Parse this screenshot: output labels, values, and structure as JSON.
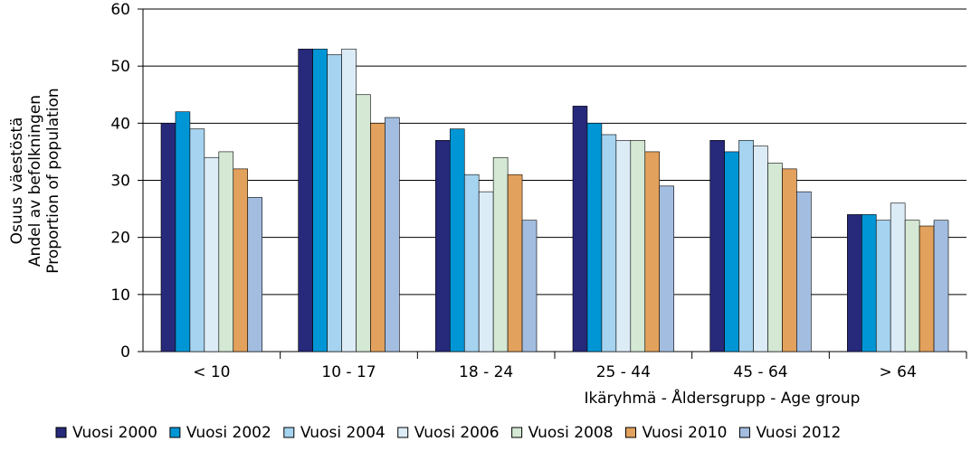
{
  "chart_data": {
    "type": "bar",
    "ylabel": [
      "Osuus väestöstä",
      "Andel av befolkningen",
      "Proportion of population"
    ],
    "xlabel": "Ikäryhmä - Åldersgrupp - Age group",
    "categories": [
      "< 10",
      "10 - 17",
      "18 - 24",
      "25 - 44",
      "45 - 64",
      "> 64"
    ],
    "series": [
      {
        "name": "Vuosi 2000",
        "color": "#27297a",
        "values": [
          40,
          53,
          37,
          43,
          37,
          24
        ]
      },
      {
        "name": "Vuosi 2002",
        "color": "#0096d6",
        "values": [
          42,
          53,
          39,
          40,
          35,
          24
        ]
      },
      {
        "name": "Vuosi 2004",
        "color": "#a6d3ef",
        "values": [
          39,
          52,
          31,
          38,
          37,
          23
        ]
      },
      {
        "name": "Vuosi 2006",
        "color": "#dcecf7",
        "values": [
          34,
          53,
          28,
          37,
          36,
          26
        ]
      },
      {
        "name": "Vuosi 2008",
        "color": "#d4e8d4",
        "values": [
          35,
          45,
          34,
          37,
          33,
          23
        ]
      },
      {
        "name": "Vuosi 2010",
        "color": "#e2a15c",
        "values": [
          32,
          40,
          31,
          35,
          32,
          22
        ]
      },
      {
        "name": "Vuosi 2012",
        "color": "#a3bde0",
        "values": [
          27,
          41,
          23,
          29,
          28,
          23
        ]
      }
    ],
    "ylim": [
      0,
      60
    ],
    "yticks": [
      0,
      10,
      20,
      30,
      40,
      50,
      60
    ],
    "grid": true,
    "legend": "bottom"
  }
}
